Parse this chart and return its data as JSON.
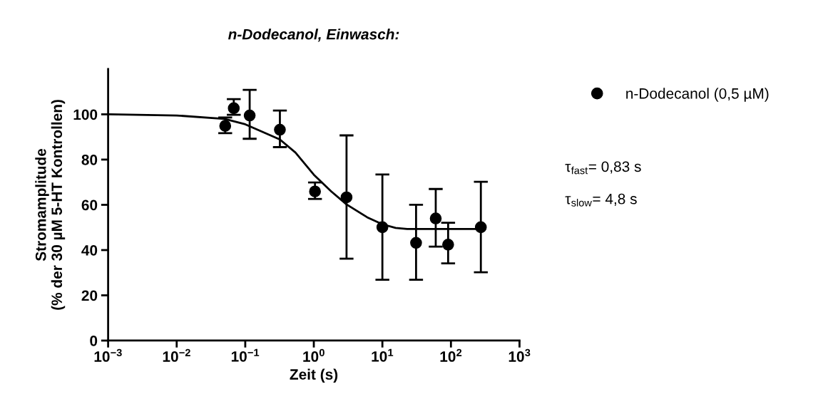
{
  "chart_data": {
    "type": "scatter",
    "title": "n-Dodecanol, Einwasch:",
    "xlabel": "Zeit (s)",
    "ylabel": "Stromamplitude\n(% der 30 µM 5-HT Kontrollen)",
    "log": "x",
    "xlim": [
      0.001,
      1000
    ],
    "ylim": [
      0,
      120
    ],
    "xticks": [
      {
        "value": 0.001,
        "label": "10$^{−3}$"
      },
      {
        "value": 0.01,
        "label": "10$^{−2}$"
      },
      {
        "value": 0.1,
        "label": "10$^{−1}$"
      },
      {
        "value": 1,
        "label": "10$^{0}$"
      },
      {
        "value": 10,
        "label": "10$^{1}$"
      },
      {
        "value": 100,
        "label": "10$^{2}$"
      },
      {
        "value": 1000,
        "label": "10$^{3}$"
      }
    ],
    "yticks": [
      0,
      20,
      40,
      60,
      80,
      100
    ],
    "grid": false,
    "legend": "top right",
    "marker": "circle",
    "series": [
      {
        "name": "n-Dodecanol (0,5 µM)",
        "color": "#000000",
        "x": [
          0.051,
          0.068,
          0.116,
          0.32,
          1.04,
          3.0,
          10,
          31,
          60,
          91,
          273
        ],
        "values": [
          94.9,
          102.7,
          99.5,
          93.2,
          65.9,
          63.3,
          50.1,
          43.2,
          54,
          42.4,
          50.1
        ],
        "errors": [
          [
            91.7,
            98.6
          ],
          [
            99.8,
            106.7
          ],
          [
            89.2,
            110.8
          ],
          [
            85.5,
            101.7
          ],
          [
            62.6,
            69.9
          ],
          [
            36.2,
            90.7
          ],
          [
            26.9,
            73.4
          ],
          [
            26.9,
            60
          ],
          [
            41.5,
            67
          ],
          [
            34.1,
            52.1
          ],
          [
            30.2,
            70.2
          ]
        ]
      },
      {
        "type": "line",
        "color": "#000000",
        "marker": "none",
        "line_style": "solid",
        "x": [
          0.001,
          0.01,
          0.05,
          0.1,
          0.32,
          0.54,
          1,
          1.8,
          3,
          6,
          10,
          15.6,
          23,
          273
        ],
        "values": [
          100,
          99.5,
          98,
          95.6,
          88.9,
          83.1,
          73.3,
          65.9,
          60.2,
          54.5,
          51.4,
          49.8,
          49.3,
          49.3
        ]
      }
    ],
    "annotations": [
      "τ$_{fast}$= 0,83 s",
      "τ$_{slow}$= 4,8 s"
    ]
  }
}
